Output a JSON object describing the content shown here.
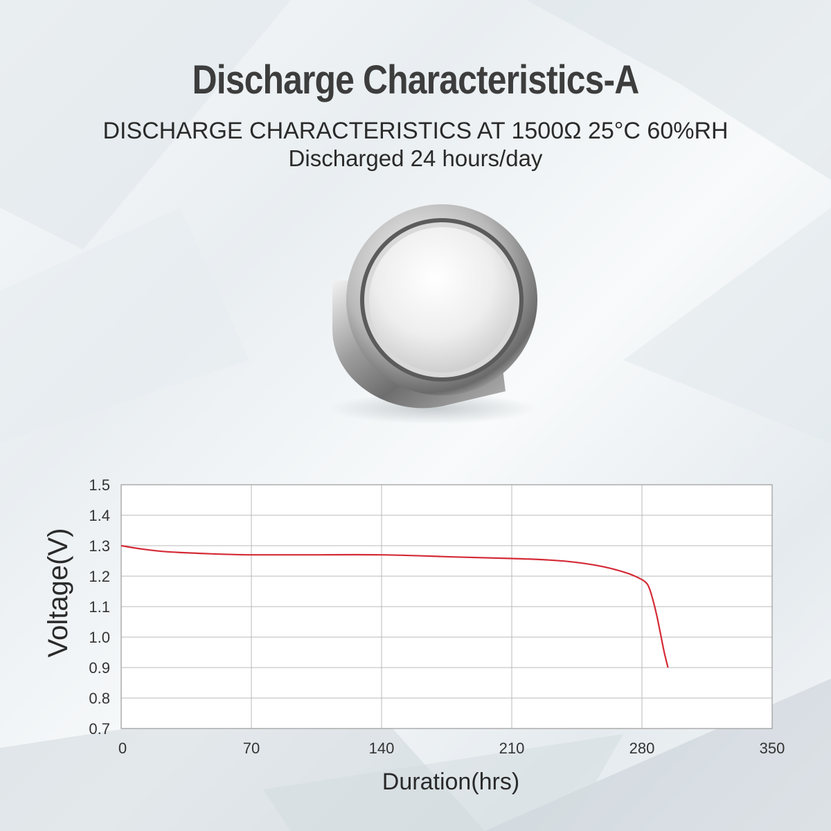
{
  "page": {
    "title": "Discharge Characteristics-A",
    "subtitle_line1": "DISCHARGE CHARACTERISTICS AT 1500Ω 25°C 60%RH",
    "subtitle_line2": "Discharged 24 hours/day"
  },
  "colors": {
    "curve": "#d42a36",
    "grid": "#b8b8b8",
    "text": "#333333"
  },
  "icons": {
    "battery": "coin-cell-battery-icon"
  },
  "chart_data": {
    "type": "line",
    "xlabel": "Duration(hrs)",
    "ylabel": "Voltage(V)",
    "xlim": [
      0,
      350
    ],
    "ylim": [
      0.7,
      1.5
    ],
    "xticks": [
      0,
      70,
      140,
      210,
      280,
      350
    ],
    "yticks": [
      1.5,
      1.4,
      1.3,
      1.2,
      1.1,
      1.0,
      0.9,
      0.8,
      0.7
    ],
    "ytick_labels": [
      "1.5",
      "1.4",
      "1.3",
      "1.2",
      "1.1",
      "1.0",
      "0.9",
      "0.8",
      "0.7"
    ],
    "grid": true,
    "legend": "none",
    "series": [
      {
        "x": [
          0,
          10,
          25,
          50,
          70,
          100,
          140,
          180,
          210,
          230,
          245,
          260,
          272,
          278,
          282,
          284,
          286,
          288,
          290,
          292,
          294
        ],
        "y": [
          1.3,
          1.29,
          1.28,
          1.273,
          1.27,
          1.27,
          1.27,
          1.263,
          1.258,
          1.253,
          1.245,
          1.23,
          1.21,
          1.195,
          1.18,
          1.16,
          1.12,
          1.07,
          1.01,
          0.95,
          0.9
        ]
      }
    ]
  }
}
